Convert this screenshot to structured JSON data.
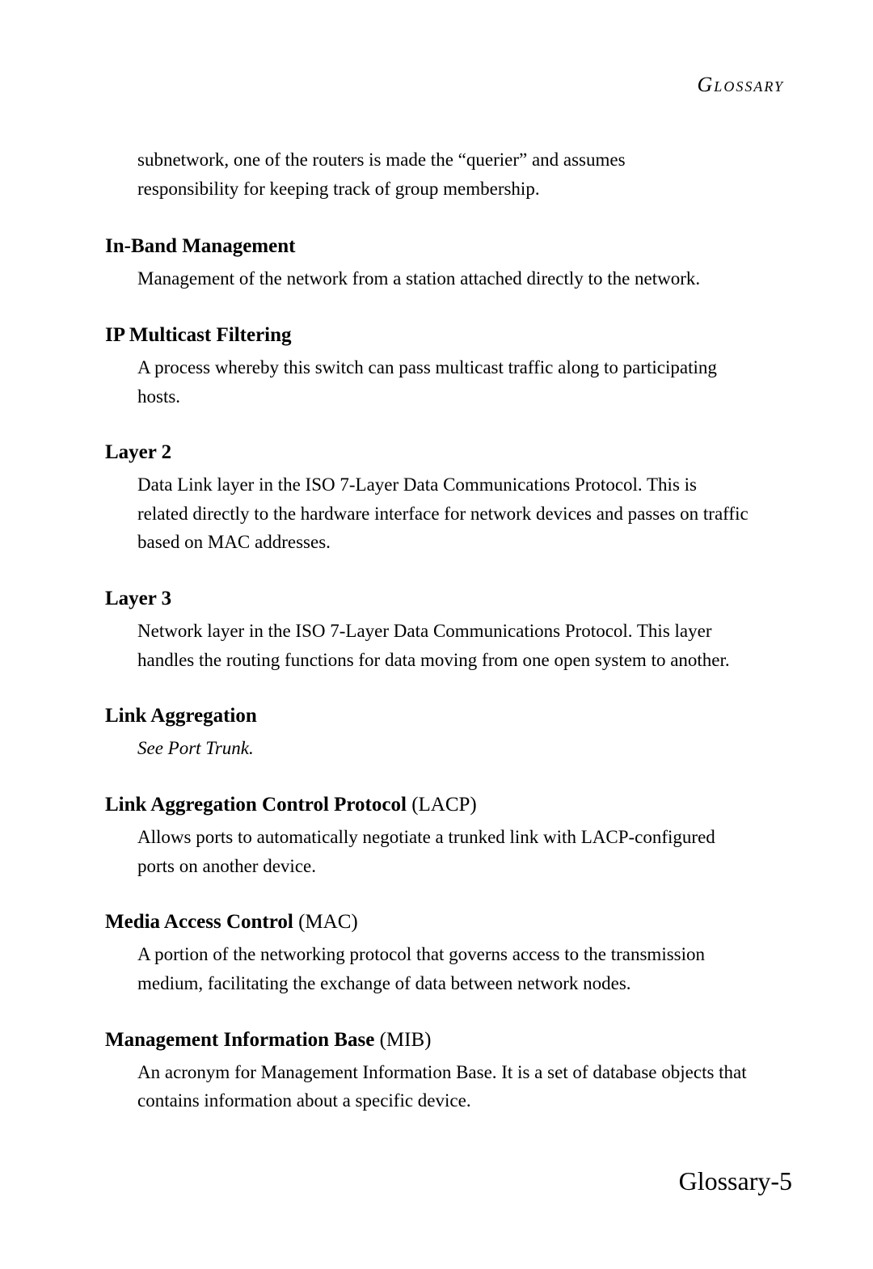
{
  "header": "Glossary",
  "intro": "subnetwork, one of the routers is made the “querier” and assumes responsibility for keeping track of group membership.",
  "entries": [
    {
      "term": "In-Band Management",
      "suffix": "",
      "definition": "Management of the network from a station attached directly to the network.",
      "italic": false
    },
    {
      "term": "IP Multicast Filtering",
      "suffix": "",
      "definition": "A process whereby this switch can pass multicast traffic along to participating hosts.",
      "italic": false
    },
    {
      "term": "Layer 2",
      "suffix": "",
      "definition": "Data Link layer in the ISO 7-Layer Data Communications Protocol. This is related directly to the hardware interface for network devices and passes on traffic based on MAC addresses.",
      "italic": false
    },
    {
      "term": "Layer 3",
      "suffix": "",
      "definition": "Network layer in the ISO 7-Layer Data Communications Protocol. This layer handles the routing functions for data moving from one open system to another.",
      "italic": false
    },
    {
      "term": "Link Aggregation",
      "suffix": "",
      "definition": "See Port Trunk.",
      "italic": true
    },
    {
      "term": "Link Aggregation Control Protocol",
      "suffix": " (LACP)",
      "definition": "Allows ports to automatically negotiate a trunked link with LACP-configured ports on another device.",
      "italic": false
    },
    {
      "term": "Media Access Control",
      "suffix": " (MAC)",
      "definition": "A portion of the networking protocol that governs access to the transmission medium, facilitating the exchange of data between network nodes.",
      "italic": false
    },
    {
      "term": "Management Information Base",
      "suffix": " (MIB)",
      "definition": "An acronym for Management Information Base. It is a set of database objects that contains information about a specific device.",
      "italic": false
    }
  ],
  "page_number": "Glossary-5"
}
